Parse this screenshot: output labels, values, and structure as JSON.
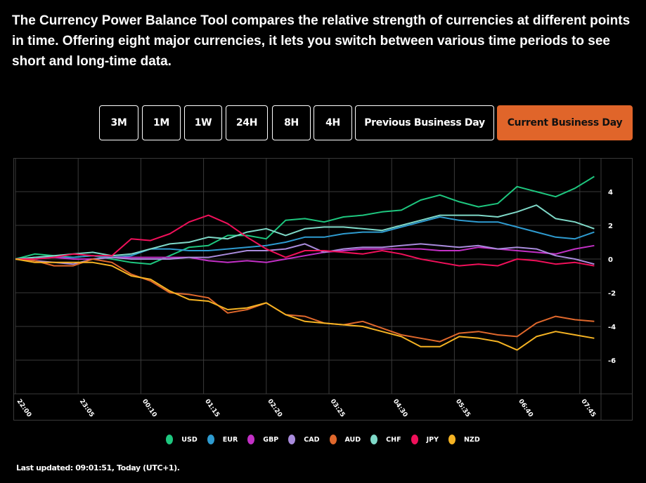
{
  "intro": "The Currency Power Balance Tool compares the relative strength of currencies at different points in time. Offering eight major currencies, it lets you switch between various time periods to see short and long-time data.",
  "periods": [
    {
      "label": "3M",
      "active": false
    },
    {
      "label": "1M",
      "active": false
    },
    {
      "label": "1W",
      "active": false
    },
    {
      "label": "24H",
      "active": false
    },
    {
      "label": "8H",
      "active": false
    },
    {
      "label": "4H",
      "active": false
    },
    {
      "label": "Previous Business Day",
      "active": false
    },
    {
      "label": "Current Business Day",
      "active": true
    }
  ],
  "accent_color": "#e0652a",
  "footer": "Last updated: 09:01:51, Today (UTC+1).",
  "chart_data": {
    "type": "line",
    "title": "",
    "xlabel": "",
    "ylabel": "",
    "x_unit": "minutes since 22:00",
    "x": [
      0,
      20,
      40,
      60,
      80,
      100,
      120,
      140,
      160,
      180,
      200,
      220,
      240,
      260,
      280,
      300,
      320,
      340,
      360,
      380,
      400,
      420,
      440,
      460,
      480,
      500,
      520,
      540,
      560,
      580,
      600
    ],
    "x_ticks": [
      {
        "m": 0,
        "label": "22:00"
      },
      {
        "m": 65,
        "label": "23:05"
      },
      {
        "m": 130,
        "label": "00:10"
      },
      {
        "m": 195,
        "label": "01:15"
      },
      {
        "m": 260,
        "label": "02:20"
      },
      {
        "m": 325,
        "label": "03:25"
      },
      {
        "m": 390,
        "label": "04:30"
      },
      {
        "m": 455,
        "label": "05:35"
      },
      {
        "m": 520,
        "label": "06:40"
      },
      {
        "m": 585,
        "label": "07:45"
      }
    ],
    "xlim": [
      0,
      607
    ],
    "ylim": [
      -8,
      6
    ],
    "y_ticks": [
      4,
      2,
      0,
      -2,
      -4,
      -6
    ],
    "grid": true,
    "legend_position": "bottom",
    "series": [
      {
        "name": "USD",
        "color": "#1ec77f",
        "values": [
          0,
          0.3,
          0.2,
          0.1,
          0.2,
          0,
          -0.2,
          -0.3,
          0.2,
          0.7,
          0.8,
          1.4,
          1.4,
          1.2,
          2.3,
          2.4,
          2.2,
          2.5,
          2.6,
          2.8,
          2.9,
          3.5,
          3.8,
          3.4,
          3.1,
          3.3,
          4.3,
          4.0,
          3.7,
          4.2,
          4.9
        ]
      },
      {
        "name": "EUR",
        "color": "#2e9bd0",
        "values": [
          0,
          0.1,
          0.1,
          0.1,
          0.2,
          0.1,
          0.2,
          0.6,
          0.6,
          0.5,
          0.5,
          0.6,
          0.7,
          0.8,
          1.0,
          1.3,
          1.3,
          1.5,
          1.6,
          1.6,
          1.9,
          2.2,
          2.5,
          2.3,
          2.2,
          2.2,
          1.9,
          1.6,
          1.3,
          1.2,
          1.6
        ]
      },
      {
        "name": "GBP",
        "color": "#c330c6",
        "values": [
          0,
          0,
          0.1,
          0,
          0,
          0.1,
          0.1,
          0.1,
          0.1,
          0.1,
          -0.1,
          -0.2,
          -0.1,
          -0.2,
          0,
          0.2,
          0.4,
          0.5,
          0.6,
          0.6,
          0.6,
          0.6,
          0.5,
          0.5,
          0.7,
          0.6,
          0.5,
          0.4,
          0.3,
          0.6,
          0.8
        ]
      },
      {
        "name": "CAD",
        "color": "#a98bdc",
        "values": [
          0,
          -0.1,
          -0.2,
          -0.3,
          0,
          0.1,
          0,
          0,
          0,
          0.1,
          0.1,
          0.3,
          0.5,
          0.5,
          0.6,
          0.9,
          0.4,
          0.6,
          0.7,
          0.7,
          0.8,
          0.9,
          0.8,
          0.7,
          0.8,
          0.6,
          0.7,
          0.6,
          0.2,
          0,
          -0.3
        ]
      },
      {
        "name": "AUD",
        "color": "#e0682c",
        "values": [
          0,
          -0.1,
          -0.4,
          -0.4,
          0,
          -0.2,
          -0.9,
          -1.3,
          -2.0,
          -2.1,
          -2.3,
          -3.2,
          -3.0,
          -2.6,
          -3.3,
          -3.4,
          -3.8,
          -3.9,
          -3.7,
          -4.1,
          -4.5,
          -4.7,
          -4.9,
          -4.4,
          -4.3,
          -4.5,
          -4.6,
          -3.8,
          -3.4,
          -3.6,
          -3.7
        ]
      },
      {
        "name": "CHF",
        "color": "#7fd9c8",
        "values": [
          0,
          0.1,
          0.2,
          0.3,
          0.4,
          0.2,
          0.3,
          0.6,
          0.9,
          1.0,
          1.3,
          1.2,
          1.6,
          1.8,
          1.4,
          1.8,
          1.9,
          1.9,
          1.8,
          1.7,
          2.0,
          2.3,
          2.6,
          2.6,
          2.6,
          2.5,
          2.8,
          3.2,
          2.4,
          2.2,
          1.8
        ]
      },
      {
        "name": "JPY",
        "color": "#f0105a",
        "values": [
          0,
          0,
          0.1,
          0.3,
          0.2,
          0.2,
          1.2,
          1.1,
          1.5,
          2.2,
          2.6,
          2.1,
          1.3,
          0.6,
          0.1,
          0.5,
          0.5,
          0.4,
          0.3,
          0.5,
          0.3,
          0,
          -0.2,
          -0.4,
          -0.3,
          -0.4,
          0,
          -0.1,
          -0.3,
          -0.2,
          -0.4
        ]
      },
      {
        "name": "NZD",
        "color": "#f5b323",
        "values": [
          0,
          -0.2,
          -0.2,
          -0.2,
          -0.2,
          -0.4,
          -1.0,
          -1.2,
          -1.9,
          -2.4,
          -2.5,
          -3.0,
          -2.9,
          -2.6,
          -3.3,
          -3.7,
          -3.8,
          -3.9,
          -4.0,
          -4.3,
          -4.6,
          -5.2,
          -5.2,
          -4.6,
          -4.7,
          -4.9,
          -5.4,
          -4.6,
          -4.3,
          -4.5,
          -4.7
        ]
      }
    ]
  }
}
